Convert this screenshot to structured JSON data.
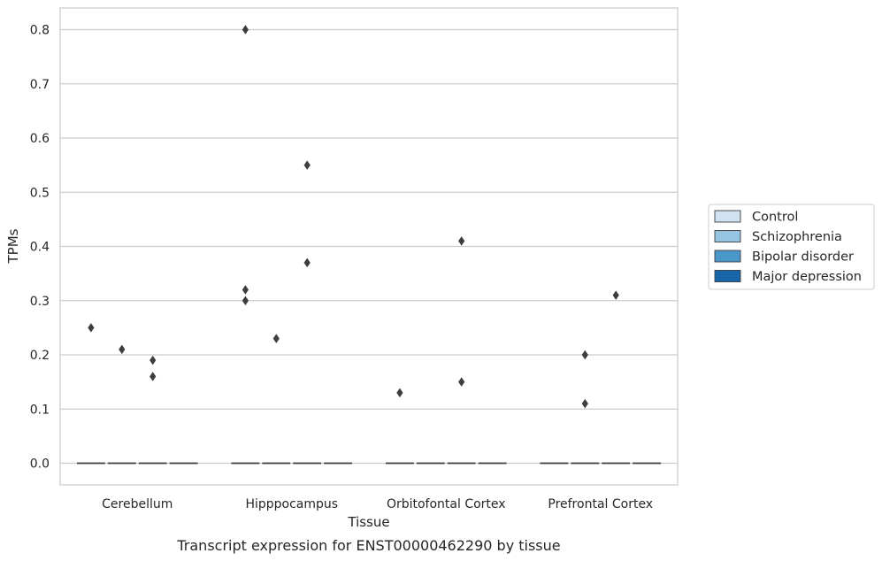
{
  "chart_data": {
    "type": "box",
    "xlabel": "Tissue",
    "ylabel": "TPMs",
    "caption": "Transcript expression for ENST00000462290 by tissue",
    "categories": [
      "Cerebellum",
      "Hipppocampus",
      "Orbitofontal Cortex",
      "Prefrontal Cortex"
    ],
    "ylim": [
      -0.04,
      0.84
    ],
    "yticks": [
      0.0,
      0.1,
      0.2,
      0.3,
      0.4,
      0.5,
      0.6,
      0.7,
      0.8
    ],
    "ytick_labels": [
      "0.0",
      "0.1",
      "0.2",
      "0.3",
      "0.4",
      "0.5",
      "0.6",
      "0.7",
      "0.8"
    ],
    "grid": "horizontal",
    "legend_position": "right",
    "series": [
      {
        "name": "Control",
        "color": "#d0e1f2",
        "medians": [
          0,
          0,
          0,
          0
        ],
        "outliers": [
          [
            0.25
          ],
          [
            0.8,
            0.32,
            0.3
          ],
          [
            0.13
          ],
          []
        ]
      },
      {
        "name": "Schizophrenia",
        "color": "#94c4df",
        "medians": [
          0,
          0,
          0,
          0
        ],
        "outliers": [
          [
            0.21
          ],
          [
            0.23
          ],
          [],
          [
            0.2,
            0.11
          ]
        ]
      },
      {
        "name": "Bipolar disorder",
        "color": "#4a98c9",
        "medians": [
          0,
          0,
          0,
          0
        ],
        "outliers": [
          [
            0.19,
            0.16
          ],
          [
            0.55,
            0.37
          ],
          [
            0.41,
            0.15
          ],
          [
            0.31
          ]
        ]
      },
      {
        "name": "Major depression",
        "color": "#1764ab",
        "medians": [
          0,
          0,
          0,
          0
        ],
        "outliers": [
          [],
          [],
          [],
          []
        ]
      }
    ]
  }
}
